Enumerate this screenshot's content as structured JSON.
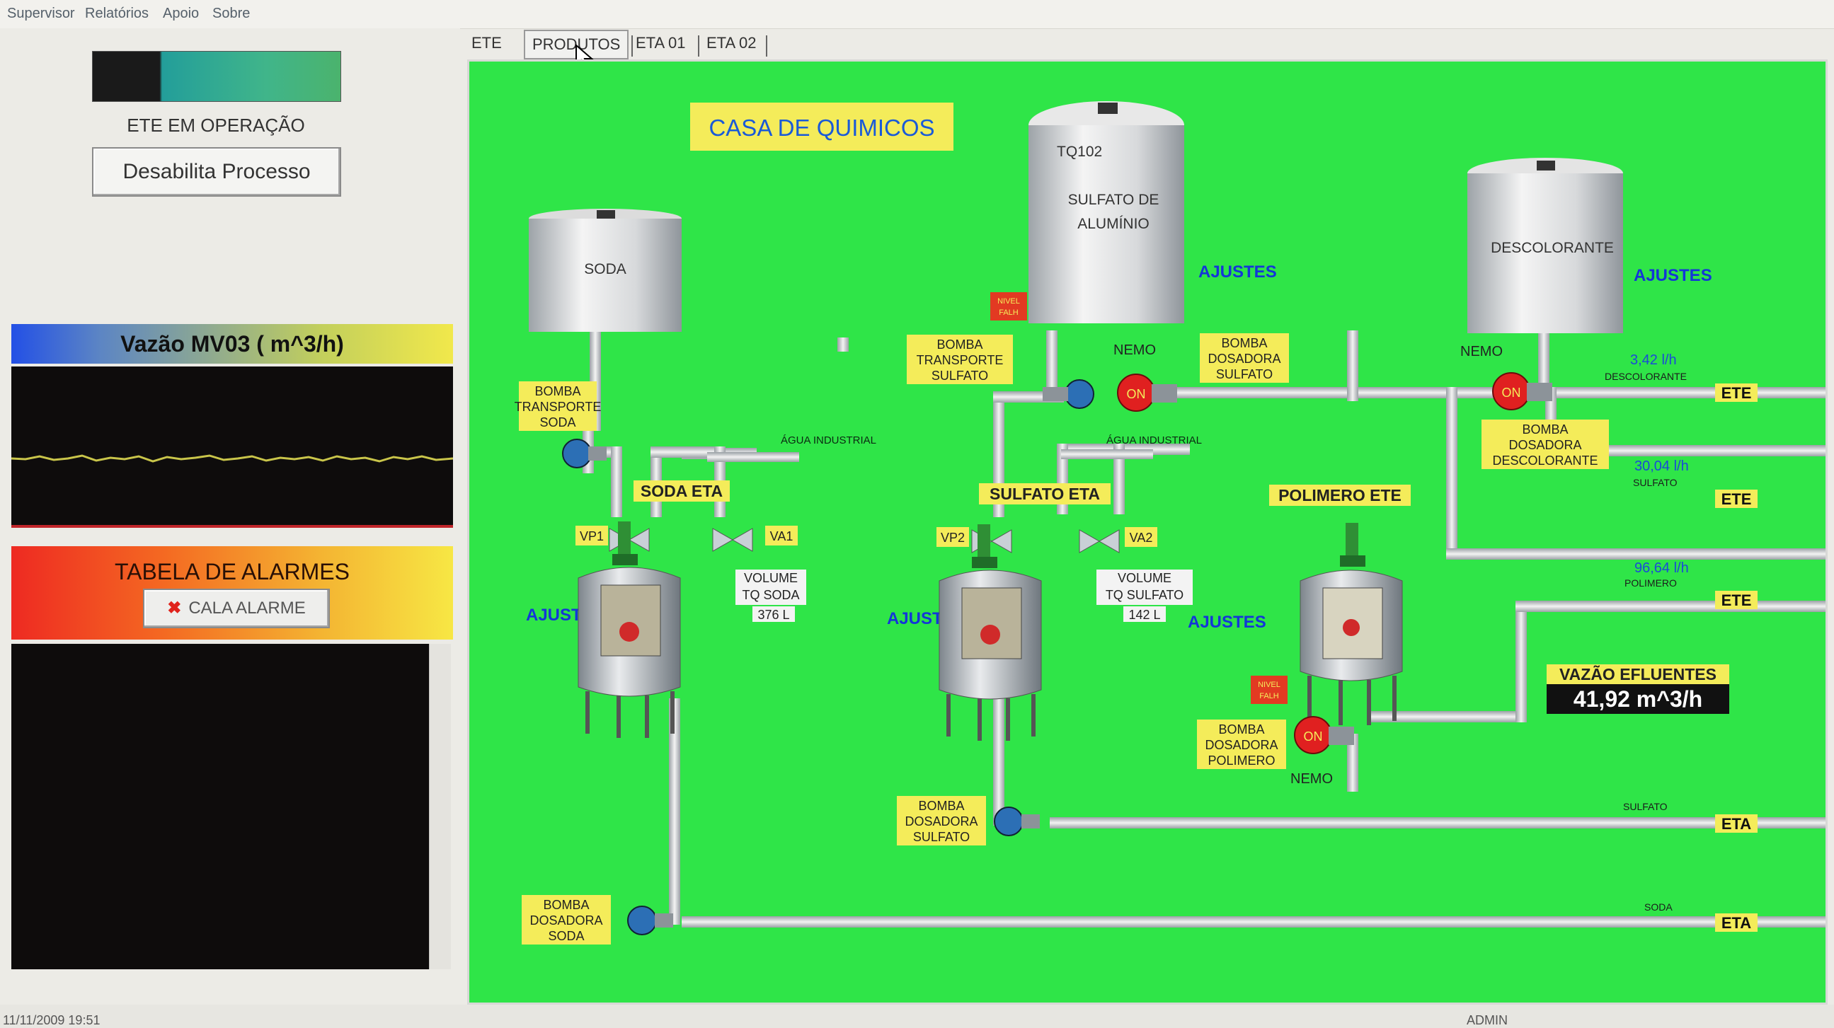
{
  "menu": [
    "Supervisor",
    "Relatórios",
    "Apoio",
    "Sobre"
  ],
  "left": {
    "status": "ETE EM OPERAÇÃO",
    "disable_button": "Desabilita Processo",
    "flow_title": "Vazão MV03 ( m^3/h)",
    "alarm_title": "TABELA DE ALARMES",
    "alarm_button": "CALA ALARME"
  },
  "tabs": [
    "ETE",
    "PRODUTOS",
    "ETA 01",
    "ETA 02"
  ],
  "active_tab": "PRODUTOS",
  "panel": {
    "title": "CASA DE QUIMICOS",
    "tanks": {
      "soda": "SODA",
      "tq102": "TQ102",
      "sulfato_1": "SULFATO DE",
      "sulfato_2": "ALUMÍNIO",
      "descolorante": "DESCOLORANTE"
    },
    "ajustes": "AJUSTES",
    "nivel_1": "NIVEL",
    "nivel_2": "FALH",
    "bomba_transporte_soda": [
      "BOMBA",
      "TRANSPORTE",
      "SODA"
    ],
    "bomba_transporte_sulfato": [
      "BOMBA",
      "TRANSPORTE",
      "SULFATO"
    ],
    "bomba_dosadora_sulfato_top": [
      "BOMBA",
      "DOSADORA",
      "SULFATO"
    ],
    "bomba_dosadora_descolorante": [
      "BOMBA",
      "DOSADORA",
      "DESCOLORANTE"
    ],
    "bomba_dosadora_polimero": [
      "BOMBA",
      "DOSADORA",
      "POLIMERO"
    ],
    "bomba_dosadora_sulfato_bottom": [
      "BOMBA",
      "DOSADORA",
      "SULFATO"
    ],
    "bomba_dosadora_soda": [
      "BOMBA",
      "DOSADORA",
      "SODA"
    ],
    "nemo": "NEMO",
    "on": "ON",
    "agua_industrial": "ÁGUA INDUSTRIAL",
    "soda_eta": "SODA ETA",
    "sulfato_eta": "SULFATO ETA",
    "polimero_ete": "POLIMERO ETE",
    "vp1": "VP1",
    "va1": "VA1",
    "vp2": "VP2",
    "va2": "VA2",
    "vol_soda": [
      "VOLUME",
      "TQ SODA",
      "376 L"
    ],
    "vol_sulfato": [
      "VOLUME",
      "TQ SULFATO",
      "142 L"
    ],
    "flow_desc": "3,42 l/h",
    "label_desc": "DESCOLORANTE",
    "flow_sulf": "30,04 l/h",
    "label_sulf": "SULFATO",
    "flow_pol": "96,64 l/h",
    "label_pol": "POLIMERO",
    "label_sulfato_line": "SULFATO",
    "label_soda_line": "SODA",
    "ete": "ETE",
    "eta": "ETA",
    "vazao_title": "VAZÃO EFLUENTES",
    "vazao_value": "41,92  m^3/h"
  },
  "footer": {
    "datetime": "11/11/2009 19:51",
    "user": "ADMIN"
  },
  "colors": {
    "panel_green": "#2fe548",
    "label_yellow": "#f4ec5a",
    "ajustes_blue": "#1436d8",
    "pump_blue": "#2c6fb5",
    "pump_red": "#e02020"
  }
}
